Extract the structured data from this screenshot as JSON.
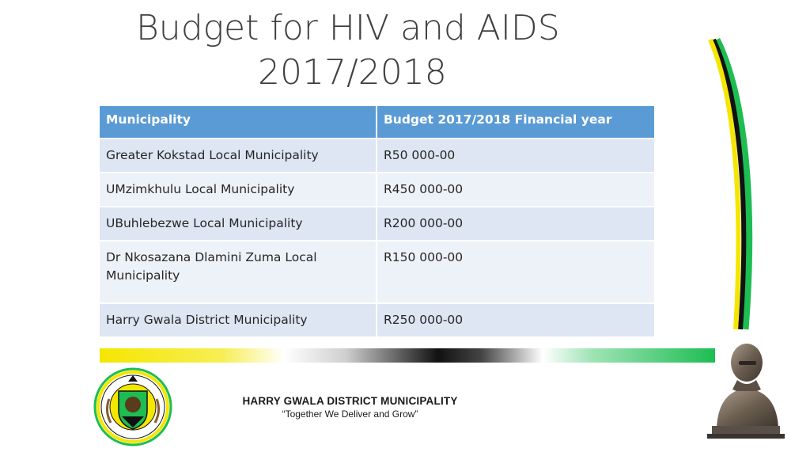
{
  "slide": {
    "title_line1": "Budget for HIV and AIDS",
    "title_line2": "2017/2018"
  },
  "table": {
    "headers": [
      "Municipality",
      "Budget 2017/2018 Financial year"
    ],
    "rows": [
      {
        "municipality": "Greater Kokstad Local Municipality",
        "budget": "R50 000-00"
      },
      {
        "municipality": "UMzimkhulu Local Municipality",
        "budget": "R450 000-00"
      },
      {
        "municipality": "UBuhlebezwe Local Municipality",
        "budget": "R200 000-00"
      },
      {
        "municipality": "Dr Nkosazana Dlamini Zuma Local Municipality",
        "budget": "R150 000-00"
      },
      {
        "municipality": "Harry Gwala District Municipality",
        "budget": "R250 000-00"
      }
    ]
  },
  "footer": {
    "name": "HARRY GWALA DISTRICT MUNICIPALITY",
    "motto": "“Together We Deliver and Grow”"
  },
  "logo": {
    "icon": "municipal-crest-icon",
    "ring_text": "HARRY GWALA DISTRICT MUNICIPALITY"
  },
  "colors": {
    "header_bg": "#5b9bd5",
    "row_bg": "#dde6f2",
    "row_alt_bg": "#edf1f8",
    "flag_yellow": "#f5e600",
    "flag_green": "#1dbd52",
    "flag_black": "#111111"
  }
}
